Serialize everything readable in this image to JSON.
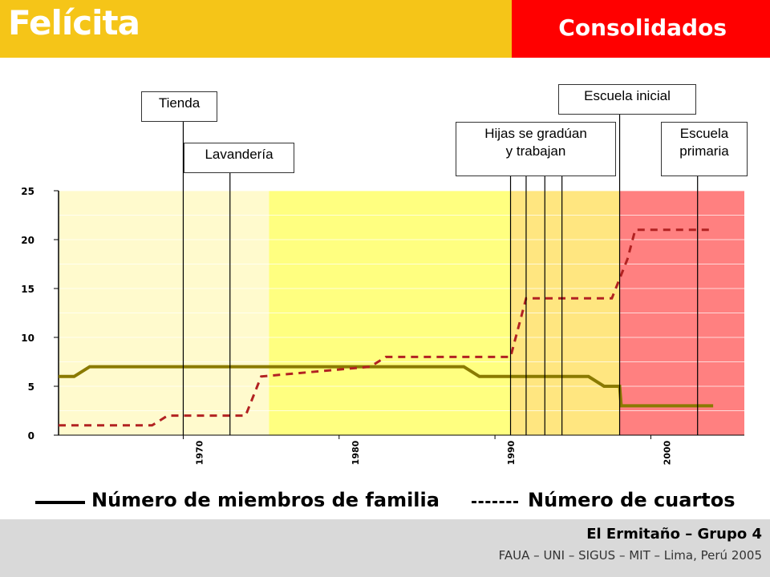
{
  "header": {
    "app_title": "Felícita",
    "section_title": "Consolidados",
    "colors": {
      "yellow": "#f5c518",
      "red": "#ff0000"
    }
  },
  "footer": {
    "team": "El Ermitaño – Grupo 4",
    "credit": "FAUA – UNI – SIGUS – MIT – Lima, Perú 2005"
  },
  "annotations": [
    {
      "label": "Tienda",
      "year": 1970
    },
    {
      "label": "Lavandería",
      "year": 1973
    },
    {
      "label": "Hijas se gradúan\ny trabajan",
      "years": [
        1991,
        1992,
        1993.2,
        1994.3
      ]
    },
    {
      "label": "Escuela inicial",
      "year": 1998
    },
    {
      "label": "Escuela\nprimaria",
      "year": 2003
    }
  ],
  "legend": {
    "solid_label": "Número de miembros de familia",
    "dashed_label": "Número de cuartos"
  },
  "chart_data": {
    "type": "line",
    "title": "",
    "xlabel": "",
    "ylabel": "",
    "xlim": [
      1962,
      2006
    ],
    "ylim": [
      0,
      25
    ],
    "yticks": [
      0,
      5,
      10,
      15,
      20,
      25
    ],
    "xticks": [
      1970,
      1980,
      1990,
      2000
    ],
    "grid": true,
    "periods": [
      {
        "from": 1962,
        "to": 1975.5,
        "color": "#fffacd"
      },
      {
        "from": 1975.5,
        "to": 1991,
        "color": "#ffff80"
      },
      {
        "from": 1991,
        "to": 1998,
        "color": "#ffe680"
      },
      {
        "from": 1998,
        "to": 2006,
        "color": "#ff8080"
      }
    ],
    "series": [
      {
        "name": "Número de miembros de familia",
        "style": "solid",
        "x": [
          1962,
          1963,
          1964,
          1988,
          1989,
          1996,
          1997,
          1998,
          1998.1,
          2004
        ],
        "y": [
          6,
          6,
          7,
          7,
          6,
          6,
          5,
          5,
          3,
          3
        ]
      },
      {
        "name": "Número de cuartos",
        "style": "dashed",
        "x": [
          1962,
          1968,
          1969,
          1974,
          1975,
          1982,
          1983,
          1991,
          1992,
          1997.5,
          1998.5,
          1999,
          2004
        ],
        "y": [
          1,
          1,
          2,
          2,
          6,
          7,
          8,
          8,
          14,
          14,
          18,
          21,
          21
        ]
      }
    ]
  }
}
